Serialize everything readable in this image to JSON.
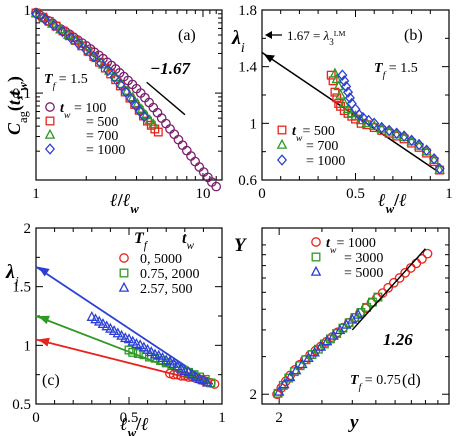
{
  "chart_data": [
    {
      "panel": "(a)",
      "type": "scatter",
      "xscale": "log",
      "yscale": "log",
      "xlim": [
        1,
        13
      ],
      "ylim": [
        0.009,
        1
      ],
      "xlabel": "ℓ/ℓ_w",
      "ylabel": "C_ag(t,t_w)",
      "xticks": [
        1,
        10
      ],
      "yticks": [
        0.1,
        1
      ],
      "xtick_labels": [
        "1",
        "10"
      ],
      "ytick_labels": [
        "0.1",
        "1"
      ],
      "annotation": "T_f = 1.5",
      "slope_label": "−1.67",
      "slope_line": {
        "x": [
          4.6,
          7.8
        ],
        "y": [
          0.135,
          0.055
        ]
      },
      "legend_title": "t_w",
      "series": [
        {
          "name": "t_w = 100",
          "marker": "circle",
          "color": "#7a1f6e",
          "x": [
            1.0,
            1.06,
            1.12,
            1.19,
            1.26,
            1.33,
            1.41,
            1.5,
            1.59,
            1.68,
            1.78,
            1.89,
            2.0,
            2.12,
            2.24,
            2.38,
            2.52,
            2.67,
            2.83,
            3.0,
            3.17,
            3.36,
            3.56,
            3.78,
            4.0,
            4.24,
            4.49,
            4.76,
            5.04,
            5.34,
            5.66,
            6.0,
            6.35,
            6.73,
            7.13,
            7.55,
            8.0,
            8.48,
            8.98,
            9.51,
            10.1,
            10.7,
            11.3,
            12.0
          ],
          "y": [
            0.93,
            0.86,
            0.8,
            0.74,
            0.69,
            0.64,
            0.59,
            0.55,
            0.51,
            0.47,
            0.435,
            0.4,
            0.37,
            0.34,
            0.31,
            0.285,
            0.26,
            0.235,
            0.215,
            0.195,
            0.175,
            0.158,
            0.142,
            0.127,
            0.113,
            0.1,
            0.088,
            0.077,
            0.067,
            0.058,
            0.05,
            0.043,
            0.037,
            0.032,
            0.0275,
            0.0236,
            0.0203,
            0.0175,
            0.015,
            0.0129,
            0.0112,
            0.0097,
            0.0085,
            0.0075
          ]
        },
        {
          "name": "= 500",
          "marker": "square",
          "color": "#e8231c",
          "x": [
            1.0,
            1.1,
            1.2,
            1.32,
            1.45,
            1.58,
            1.72,
            1.88,
            2.05,
            2.22,
            2.4,
            2.6,
            2.8,
            3.0,
            3.2,
            3.42,
            3.65,
            3.9,
            4.15,
            4.4,
            4.65,
            4.9,
            5.15,
            5.4
          ],
          "y": [
            0.92,
            0.82,
            0.73,
            0.64,
            0.56,
            0.49,
            0.43,
            0.37,
            0.32,
            0.275,
            0.235,
            0.2,
            0.17,
            0.145,
            0.122,
            0.103,
            0.087,
            0.073,
            0.062,
            0.053,
            0.046,
            0.041,
            0.037,
            0.034
          ]
        },
        {
          "name": "= 700",
          "marker": "triangle",
          "color": "#2e9a25",
          "x": [
            1.0,
            1.12,
            1.25,
            1.4,
            1.56,
            1.72,
            1.9,
            2.1,
            2.3,
            2.52,
            2.75,
            3.0,
            3.25,
            3.52,
            3.8,
            4.05,
            4.3,
            4.55,
            4.8,
            5.05
          ],
          "y": [
            0.91,
            0.79,
            0.68,
            0.58,
            0.5,
            0.43,
            0.365,
            0.31,
            0.262,
            0.22,
            0.185,
            0.155,
            0.128,
            0.106,
            0.088,
            0.074,
            0.063,
            0.054,
            0.047,
            0.042
          ]
        },
        {
          "name": "= 1000",
          "marker": "diamond",
          "color": "#2b3fd6",
          "x": [
            1.0,
            1.13,
            1.28,
            1.44,
            1.62,
            1.8,
            2.0,
            2.22,
            2.45,
            2.7,
            2.95,
            3.2,
            3.45,
            3.7,
            3.95,
            4.2,
            4.45
          ],
          "y": [
            0.9,
            0.77,
            0.65,
            0.55,
            0.46,
            0.39,
            0.33,
            0.275,
            0.228,
            0.188,
            0.155,
            0.126,
            0.103,
            0.085,
            0.071,
            0.06,
            0.052
          ]
        }
      ]
    },
    {
      "panel": "(b)",
      "type": "scatter",
      "xlim": [
        0,
        1
      ],
      "ylim": [
        0.6,
        1.8
      ],
      "xlabel": "ℓ_w/ℓ",
      "ylabel": "λ_i",
      "xticks": [
        0,
        0.5,
        1
      ],
      "yticks": [
        0.6,
        1,
        1.4,
        1.8
      ],
      "xtick_labels": [
        "0",
        "0.5",
        "1"
      ],
      "ytick_labels": [
        "0.6",
        "1",
        "1.4",
        "1.8"
      ],
      "annotation": "T_f = 1.5",
      "arrow_label": "1.67 = λ₃ᴸᴹ",
      "fit_line": {
        "x": [
          0,
          0.94
        ],
        "y": [
          1.5,
          0.66
        ]
      },
      "legend_title": "t_w",
      "series": [
        {
          "name": "t_w = 500",
          "marker": "square",
          "color": "#e8231c",
          "x": [
            0.37,
            0.38,
            0.39,
            0.4,
            0.41,
            0.42,
            0.44,
            0.46,
            0.48,
            0.5,
            0.53,
            0.56,
            0.6,
            0.64,
            0.68,
            0.72,
            0.76,
            0.8,
            0.84,
            0.88,
            0.92,
            0.95
          ],
          "y": [
            1.34,
            1.3,
            1.22,
            1.18,
            1.14,
            1.12,
            1.09,
            1.07,
            1.05,
            1.03,
            1.0,
            0.99,
            0.97,
            0.95,
            0.93,
            0.91,
            0.89,
            0.86,
            0.83,
            0.79,
            0.73,
            0.67
          ]
        },
        {
          "name": "= 700",
          "marker": "triangle",
          "color": "#2e9a25",
          "x": [
            0.39,
            0.4,
            0.41,
            0.42,
            0.44,
            0.46,
            0.48,
            0.5,
            0.53,
            0.56,
            0.6,
            0.64,
            0.68,
            0.72,
            0.76,
            0.8,
            0.84,
            0.88,
            0.92,
            0.95
          ],
          "y": [
            1.35,
            1.31,
            1.26,
            1.2,
            1.14,
            1.1,
            1.07,
            1.05,
            1.02,
            1.0,
            0.98,
            0.96,
            0.94,
            0.92,
            0.9,
            0.87,
            0.84,
            0.8,
            0.74,
            0.67
          ]
        },
        {
          "name": "= 1000",
          "marker": "diamond",
          "color": "#2b3fd6",
          "x": [
            0.43,
            0.44,
            0.45,
            0.46,
            0.47,
            0.48,
            0.5,
            0.52,
            0.54,
            0.57,
            0.6,
            0.64,
            0.68,
            0.72,
            0.76,
            0.8,
            0.84,
            0.88,
            0.92,
            0.95
          ],
          "y": [
            1.34,
            1.3,
            1.26,
            1.22,
            1.18,
            1.14,
            1.1,
            1.06,
            1.04,
            1.02,
            1.0,
            0.97,
            0.95,
            0.93,
            0.91,
            0.88,
            0.85,
            0.81,
            0.75,
            0.68
          ]
        }
      ]
    },
    {
      "panel": "(c)",
      "type": "scatter",
      "xlim": [
        0,
        1
      ],
      "ylim": [
        0.5,
        2.0
      ],
      "xlabel": "ℓ_w/ℓ",
      "ylabel": "λ_i",
      "xticks": [
        0,
        0.5,
        1
      ],
      "yticks": [
        0.5,
        1,
        1.5,
        2
      ],
      "xtick_labels": [
        "0",
        "0.5",
        "1"
      ],
      "ytick_labels": [
        "0.5",
        "1",
        "1.5",
        "2"
      ],
      "legend_header": {
        "tf": "T_f",
        "tw": "t_w"
      },
      "series": [
        {
          "name": "0,      5000",
          "marker": "circle",
          "color": "#e8231c",
          "x": [
            0.72,
            0.74,
            0.76,
            0.78,
            0.8,
            0.82,
            0.84,
            0.86,
            0.88,
            0.9,
            0.92,
            0.94,
            0.96
          ],
          "y": [
            0.76,
            0.75,
            0.75,
            0.74,
            0.74,
            0.73,
            0.73,
            0.72,
            0.71,
            0.7,
            0.69,
            0.68,
            0.67
          ],
          "fit": {
            "x": [
              0,
              0.95
            ],
            "y": [
              1.05,
              0.67
            ]
          }
        },
        {
          "name": "0.75, 2000",
          "marker": "square",
          "color": "#2e9a25",
          "x": [
            0.5,
            0.52,
            0.55,
            0.58,
            0.61,
            0.64,
            0.67,
            0.7,
            0.73,
            0.76,
            0.79,
            0.82,
            0.85,
            0.88,
            0.91,
            0.94
          ],
          "y": [
            0.96,
            0.94,
            0.93,
            0.92,
            0.9,
            0.89,
            0.87,
            0.85,
            0.83,
            0.81,
            0.79,
            0.77,
            0.75,
            0.73,
            0.71,
            0.68
          ],
          "fit": {
            "x": [
              0,
              0.95
            ],
            "y": [
              1.25,
              0.67
            ]
          }
        },
        {
          "name": "2.57, 500",
          "marker": "triangle",
          "color": "#2b3fd6",
          "x": [
            0.3,
            0.32,
            0.34,
            0.36,
            0.38,
            0.4,
            0.42,
            0.44,
            0.46,
            0.48,
            0.5,
            0.52,
            0.54,
            0.56,
            0.58,
            0.6,
            0.62,
            0.64,
            0.66,
            0.68,
            0.7,
            0.72,
            0.74,
            0.76,
            0.78,
            0.8,
            0.82,
            0.84,
            0.86,
            0.88,
            0.9,
            0.92
          ],
          "y": [
            1.24,
            1.22,
            1.2,
            1.18,
            1.16,
            1.14,
            1.12,
            1.1,
            1.08,
            1.06,
            1.05,
            1.03,
            1.01,
            1.0,
            0.98,
            0.96,
            0.94,
            0.92,
            0.91,
            0.89,
            0.87,
            0.86,
            0.84,
            0.82,
            0.8,
            0.78,
            0.77,
            0.75,
            0.73,
            0.71,
            0.7,
            0.68
          ],
          "fit": {
            "x": [
              0,
              0.95
            ],
            "y": [
              1.67,
              0.67
            ]
          }
        }
      ]
    },
    {
      "panel": "(d)",
      "type": "scatter",
      "xscale": "log",
      "yscale": "log",
      "xlim": [
        1.7,
        10
      ],
      "ylim": [
        1.8,
        12
      ],
      "xlabel": "y",
      "ylabel": "Y",
      "xticks": [
        2
      ],
      "yticks": [
        2
      ],
      "xtick_labels": [
        "2"
      ],
      "ytick_labels": [
        "2"
      ],
      "annotation": "T_f = 0.75",
      "slope_label": "1.26",
      "slope_line": {
        "x": [
          4.0,
          8.0
        ],
        "y": [
          4.0,
          9.6
        ]
      },
      "legend_title": "t_w",
      "series": [
        {
          "name": "t_w = 1000",
          "marker": "circle",
          "color": "#e8231c",
          "x": [
            1.96,
            2.04,
            2.13,
            2.22,
            2.32,
            2.43,
            2.55,
            2.68,
            2.82,
            2.97,
            3.13,
            3.3,
            3.48,
            3.67,
            3.87,
            4.08,
            4.3,
            4.54,
            4.79,
            5.05,
            5.33,
            5.62,
            5.93,
            6.26,
            6.6,
            6.96,
            7.34,
            7.74,
            8.16
          ],
          "y": [
            2.0,
            2.14,
            2.3,
            2.45,
            2.6,
            2.75,
            2.9,
            3.05,
            3.2,
            3.35,
            3.52,
            3.7,
            3.9,
            4.1,
            4.32,
            4.55,
            4.8,
            5.05,
            5.35,
            5.65,
            5.95,
            6.3,
            6.65,
            7.0,
            7.4,
            7.8,
            8.2,
            8.6,
            9.1
          ]
        },
        {
          "name": "= 3000",
          "marker": "square",
          "color": "#2e9a25",
          "x": [
            1.98,
            2.08,
            2.19,
            2.31,
            2.44,
            2.58,
            2.73,
            2.9,
            3.07,
            3.25,
            3.45,
            3.66,
            3.88,
            4.1,
            4.34,
            4.58,
            4.84,
            5.1
          ],
          "y": [
            2.02,
            2.2,
            2.38,
            2.55,
            2.72,
            2.9,
            3.07,
            3.25,
            3.44,
            3.63,
            3.85,
            4.08,
            4.32,
            4.57,
            4.83,
            5.1,
            5.4,
            5.7
          ]
        },
        {
          "name": "= 5000",
          "marker": "triangle",
          "color": "#2b3fd6",
          "x": [
            2.0,
            2.1,
            2.22,
            2.35,
            2.49,
            2.64,
            2.8,
            2.97,
            3.15,
            3.35,
            3.56,
            3.78,
            4.0,
            4.23
          ],
          "y": [
            2.05,
            2.22,
            2.4,
            2.58,
            2.76,
            2.95,
            3.13,
            3.33,
            3.53,
            3.75,
            3.98,
            4.22,
            4.46,
            4.7
          ]
        }
      ]
    }
  ]
}
